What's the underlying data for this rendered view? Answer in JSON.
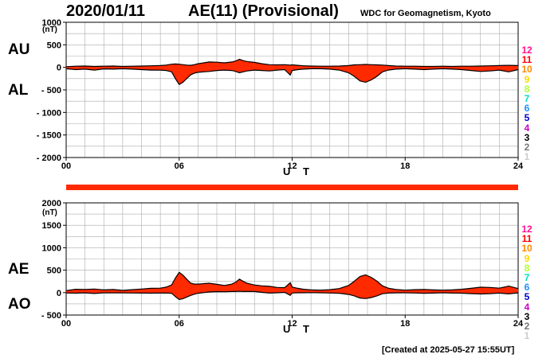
{
  "header": {
    "date": "2020/01/11",
    "title": "AE(11) (Provisional)",
    "source": "WDC for Geomagnetism, Kyoto"
  },
  "footer": "[Created at 2025-05-27 15:55UT]",
  "colors": {
    "fill": "#ff2a00",
    "line": "#000000",
    "grid": "#aaaaaa",
    "bar": "#ff2a00"
  },
  "legend": [
    {
      "label": "12",
      "color": "#ff1493"
    },
    {
      "label": "11",
      "color": "#ff0000"
    },
    {
      "label": "10",
      "color": "#ff8c00"
    },
    {
      "label": "9",
      "color": "#ffd700"
    },
    {
      "label": "8",
      "color": "#adff2f"
    },
    {
      "label": "7",
      "color": "#00e0c0"
    },
    {
      "label": "6",
      "color": "#1e90ff"
    },
    {
      "label": "5",
      "color": "#0000cd"
    },
    {
      "label": "4",
      "color": "#cc00cc"
    },
    {
      "label": "3",
      "color": "#000000"
    },
    {
      "label": "2",
      "color": "#777777"
    },
    {
      "label": "1",
      "color": "#cccccc"
    }
  ],
  "chart_data": [
    {
      "type": "area",
      "panel": "AU/AL",
      "series_labels": [
        "AU",
        "AL"
      ],
      "ylabel": "(nT)",
      "xlabel": "U T",
      "xlim": [
        0,
        24
      ],
      "ylim": [
        -2000,
        1000
      ],
      "xticks": [
        0,
        6,
        12,
        18,
        24
      ],
      "xtick_labels": [
        "00",
        "06",
        "12",
        "18",
        "24"
      ],
      "yticks": [
        1000,
        500,
        0,
        -500,
        -1000,
        -1500,
        -2000
      ],
      "ytick_labels": [
        "1000",
        "500",
        "0",
        "- 500",
        "- 1000",
        "- 1500",
        "- 2000"
      ],
      "grid": true,
      "series": [
        {
          "name": "AU",
          "x": [
            0,
            0.5,
            1,
            1.5,
            2,
            2.5,
            3,
            3.5,
            4,
            4.5,
            5,
            5.3,
            5.6,
            5.8,
            6,
            6.2,
            6.4,
            6.6,
            6.8,
            7,
            7.3,
            7.6,
            8,
            8.4,
            8.8,
            9,
            9.2,
            9.4,
            9.6,
            9.8,
            10,
            10.4,
            10.8,
            11.2,
            11.6,
            11.9,
            12,
            12.3,
            12.6,
            13,
            13.5,
            14,
            14.5,
            15,
            15.3,
            15.6,
            15.9,
            16.2,
            16.5,
            16.8,
            17.1,
            17.5,
            18,
            18.5,
            19,
            19.5,
            20,
            20.5,
            21,
            21.5,
            22,
            22.5,
            23,
            23.5,
            24
          ],
          "values": [
            15,
            25,
            30,
            20,
            25,
            30,
            20,
            25,
            30,
            35,
            40,
            50,
            70,
            75,
            70,
            60,
            50,
            45,
            60,
            80,
            100,
            120,
            115,
            100,
            120,
            140,
            180,
            150,
            130,
            120,
            110,
            80,
            60,
            55,
            60,
            50,
            55,
            45,
            35,
            30,
            25,
            25,
            30,
            40,
            55,
            60,
            65,
            60,
            55,
            50,
            40,
            30,
            25,
            25,
            20,
            20,
            25,
            20,
            25,
            25,
            30,
            35,
            40,
            45,
            40
          ]
        },
        {
          "name": "AL",
          "x": [
            0,
            0.5,
            1,
            1.5,
            2,
            2.5,
            3,
            3.5,
            4,
            4.5,
            5,
            5.3,
            5.6,
            5.8,
            6,
            6.2,
            6.4,
            6.6,
            6.8,
            7,
            7.3,
            7.6,
            8,
            8.4,
            8.8,
            9,
            9.2,
            9.4,
            9.6,
            9.8,
            10,
            10.4,
            10.8,
            11.2,
            11.6,
            11.9,
            12,
            12.3,
            12.6,
            13,
            13.5,
            14,
            14.5,
            15,
            15.3,
            15.6,
            15.9,
            16.2,
            16.5,
            16.8,
            17.1,
            17.5,
            18,
            18.5,
            19,
            19.5,
            20,
            20.5,
            21,
            21.5,
            22,
            22.5,
            23,
            23.5,
            24
          ],
          "values": [
            -30,
            -50,
            -40,
            -60,
            -35,
            -40,
            -30,
            -40,
            -50,
            -60,
            -60,
            -70,
            -100,
            -250,
            -380,
            -330,
            -250,
            -170,
            -130,
            -110,
            -100,
            -90,
            -70,
            -60,
            -70,
            -90,
            -120,
            -100,
            -80,
            -70,
            -60,
            -70,
            -80,
            -60,
            -50,
            -170,
            -70,
            -50,
            -40,
            -30,
            -30,
            -40,
            -60,
            -120,
            -200,
            -300,
            -330,
            -280,
            -200,
            -100,
            -60,
            -40,
            -30,
            -40,
            -50,
            -40,
            -30,
            -40,
            -50,
            -70,
            -90,
            -80,
            -60,
            -100,
            -50
          ]
        }
      ]
    },
    {
      "type": "area",
      "panel": "AE/AO",
      "series_labels": [
        "AE",
        "AO"
      ],
      "ylabel": "(nT)",
      "xlabel": "U T",
      "xlim": [
        0,
        24
      ],
      "ylim": [
        -500,
        2000
      ],
      "xticks": [
        0,
        6,
        12,
        18,
        24
      ],
      "xtick_labels": [
        "00",
        "06",
        "12",
        "18",
        "24"
      ],
      "yticks": [
        2000,
        1500,
        1000,
        500,
        0,
        -500
      ],
      "ytick_labels": [
        "2000",
        "1500",
        "1000",
        "500",
        "0",
        "- 500"
      ],
      "grid": true,
      "series": [
        {
          "name": "AE",
          "x": [
            0,
            0.5,
            1,
            1.5,
            2,
            2.5,
            3,
            3.5,
            4,
            4.5,
            5,
            5.3,
            5.6,
            5.8,
            6,
            6.2,
            6.4,
            6.6,
            6.8,
            7,
            7.3,
            7.6,
            8,
            8.4,
            8.8,
            9,
            9.2,
            9.4,
            9.6,
            9.8,
            10,
            10.4,
            10.8,
            11.2,
            11.6,
            11.9,
            12,
            12.3,
            12.6,
            13,
            13.5,
            14,
            14.5,
            15,
            15.3,
            15.6,
            15.9,
            16.2,
            16.5,
            16.8,
            17.1,
            17.5,
            18,
            18.5,
            19,
            19.5,
            20,
            20.5,
            21,
            21.5,
            22,
            22.5,
            23,
            23.5,
            24
          ],
          "values": [
            45,
            75,
            70,
            80,
            60,
            70,
            50,
            65,
            80,
            95,
            100,
            120,
            170,
            325,
            450,
            390,
            300,
            215,
            190,
            190,
            200,
            210,
            185,
            160,
            190,
            230,
            300,
            250,
            210,
            190,
            170,
            150,
            140,
            115,
            110,
            220,
            125,
            95,
            75,
            60,
            55,
            65,
            90,
            160,
            255,
            360,
            395,
            340,
            255,
            150,
            100,
            70,
            55,
            65,
            70,
            60,
            55,
            60,
            75,
            95,
            120,
            115,
            100,
            145,
            90
          ]
        },
        {
          "name": "AO",
          "x": [
            0,
            0.5,
            1,
            1.5,
            2,
            2.5,
            3,
            3.5,
            4,
            4.5,
            5,
            5.3,
            5.6,
            5.8,
            6,
            6.2,
            6.4,
            6.6,
            6.8,
            7,
            7.3,
            7.6,
            8,
            8.4,
            8.8,
            9,
            9.2,
            9.4,
            9.6,
            9.8,
            10,
            10.4,
            10.8,
            11.2,
            11.6,
            11.9,
            12,
            12.3,
            12.6,
            13,
            13.5,
            14,
            14.5,
            15,
            15.3,
            15.6,
            15.9,
            16.2,
            16.5,
            16.8,
            17.1,
            17.5,
            18,
            18.5,
            19,
            19.5,
            20,
            20.5,
            21,
            21.5,
            22,
            22.5,
            23,
            23.5,
            24
          ],
          "values": [
            -8,
            -13,
            -5,
            -20,
            -5,
            -5,
            -5,
            -8,
            -10,
            -13,
            -10,
            -10,
            -15,
            -88,
            -155,
            -135,
            -100,
            -63,
            -35,
            -15,
            0,
            15,
            23,
            20,
            25,
            25,
            30,
            25,
            25,
            25,
            25,
            5,
            -10,
            -3,
            5,
            -60,
            -8,
            -3,
            -3,
            0,
            -3,
            -8,
            -15,
            -40,
            -73,
            -120,
            -133,
            -110,
            -73,
            -25,
            -10,
            -5,
            -3,
            -8,
            -15,
            -10,
            -3,
            -10,
            -13,
            -23,
            -30,
            -23,
            -10,
            -28,
            -5
          ]
        }
      ]
    }
  ]
}
